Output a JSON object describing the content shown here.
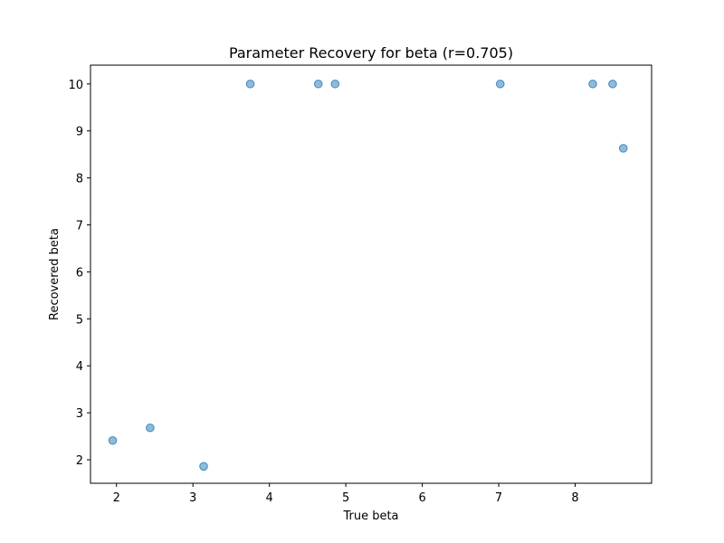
{
  "chart_data": {
    "type": "scatter",
    "title": "Parameter Recovery for beta (r=0.705)",
    "xlabel": "True beta",
    "ylabel": "Recovered beta",
    "xlim": [
      1.66,
      9.0
    ],
    "ylim": [
      1.5,
      10.4
    ],
    "xticks": [
      2,
      3,
      4,
      5,
      6,
      7,
      8
    ],
    "yticks": [
      2,
      3,
      4,
      5,
      6,
      7,
      8,
      9,
      10
    ],
    "grid": false,
    "legend": false,
    "marker_color": "#1f77b4",
    "marker_opacity": 0.5,
    "points": [
      {
        "x": 1.95,
        "y": 2.41
      },
      {
        "x": 2.44,
        "y": 2.68
      },
      {
        "x": 3.14,
        "y": 1.86
      },
      {
        "x": 3.75,
        "y": 10.0
      },
      {
        "x": 4.64,
        "y": 10.0
      },
      {
        "x": 4.86,
        "y": 10.0
      },
      {
        "x": 7.02,
        "y": 10.0
      },
      {
        "x": 8.23,
        "y": 10.0
      },
      {
        "x": 8.49,
        "y": 10.0
      },
      {
        "x": 8.63,
        "y": 8.63
      }
    ]
  }
}
